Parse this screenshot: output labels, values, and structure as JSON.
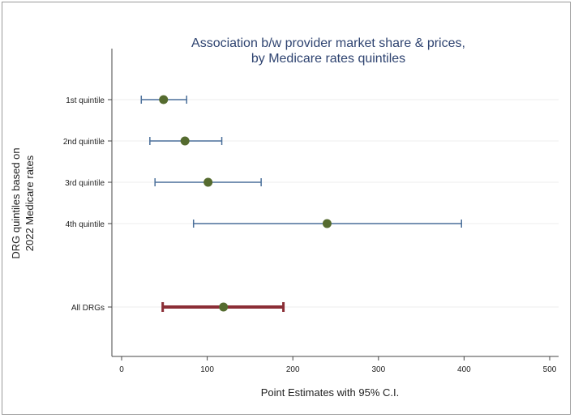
{
  "chart_data": {
    "type": "scatter",
    "subtype": "coefficient-plot-with-confidence-intervals",
    "title": [
      "Association b/w provider market share & prices,",
      "by Medicare rates quintiles"
    ],
    "xlabel": "Point Estimates with 95% C.I.",
    "ylabel": [
      "DRG quintiles based on",
      "2022 Medicare rates"
    ],
    "xlim": [
      0,
      500
    ],
    "xticks": [
      0,
      100,
      200,
      300,
      400,
      500
    ],
    "grid": "horizontal",
    "legend": "none",
    "series": [
      {
        "name": "1st quintile",
        "label": "1st  quintile",
        "estimate": 49,
        "ci_low": 23,
        "ci_high": 76,
        "color": "#4a6f9a",
        "marker_color": "#556b2f",
        "emphasis": false
      },
      {
        "name": "2nd quintile",
        "label": "2nd  quintile",
        "estimate": 74,
        "ci_low": 33,
        "ci_high": 117,
        "color": "#4a6f9a",
        "marker_color": "#556b2f",
        "emphasis": false
      },
      {
        "name": "3rd quintile",
        "label": "3rd  quintile",
        "estimate": 101,
        "ci_low": 39,
        "ci_high": 163,
        "color": "#4a6f9a",
        "marker_color": "#556b2f",
        "emphasis": false
      },
      {
        "name": "4th quintile",
        "label": "4th quintile",
        "estimate": 240,
        "ci_low": 84,
        "ci_high": 397,
        "color": "#4a6f9a",
        "marker_color": "#556b2f",
        "emphasis": false
      },
      {
        "name": "All DRGs",
        "label": "All DRGs",
        "estimate": 119,
        "ci_low": 48,
        "ci_high": 189,
        "color": "#8b2e36",
        "marker_color": "#556b2f",
        "emphasis": true
      }
    ]
  }
}
